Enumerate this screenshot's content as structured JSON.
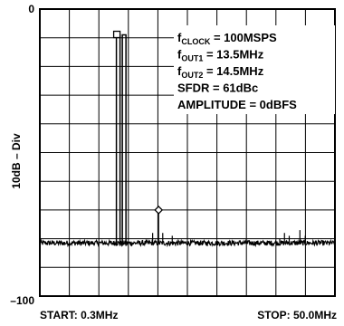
{
  "chart_data": {
    "type": "line",
    "title": "",
    "ylabel": "10dB – Div",
    "xlabel": "",
    "y_top_label": "0",
    "y_bottom_label": "–100",
    "x_start_label": "START: 0.3MHz",
    "x_stop_label": "STOP: 50.0MHz",
    "xlim": [
      0.3,
      50.0
    ],
    "ylim": [
      -100,
      0
    ],
    "grid": true,
    "grid_divisions": {
      "x": 10,
      "y": 10
    },
    "annotations": [
      {
        "base": "f",
        "sub": "CLOCK",
        "rest": " = 100MSPS"
      },
      {
        "base": "f",
        "sub": "OUT1",
        "rest": " = 13.5MHz"
      },
      {
        "base": "f",
        "sub": "OUT2",
        "rest": " = 14.5MHz"
      },
      {
        "base": "SFDR = 61dBc",
        "sub": "",
        "rest": ""
      },
      {
        "base": "AMPLITUDE = 0dBFS",
        "sub": "",
        "rest": ""
      }
    ],
    "noise_floor_db": -81.5,
    "tones": [
      {
        "f": 13.5,
        "db": -9
      },
      {
        "f": 14.5,
        "db": -9
      }
    ],
    "spurs": [
      {
        "f": 19.3,
        "db": -78
      },
      {
        "f": 20.3,
        "db": -71
      },
      {
        "f": 21.0,
        "db": -78
      },
      {
        "f": 22.6,
        "db": -79
      },
      {
        "f": 40.7,
        "db": -80
      },
      {
        "f": 41.5,
        "db": -78
      },
      {
        "f": 42.3,
        "db": -79
      },
      {
        "f": 44.1,
        "db": -77
      },
      {
        "f": 45.0,
        "db": -79
      }
    ],
    "markers": [
      {
        "f": 13.5,
        "db": -9,
        "shape": "square"
      },
      {
        "f": 20.3,
        "db": -70,
        "shape": "diamond"
      }
    ]
  }
}
